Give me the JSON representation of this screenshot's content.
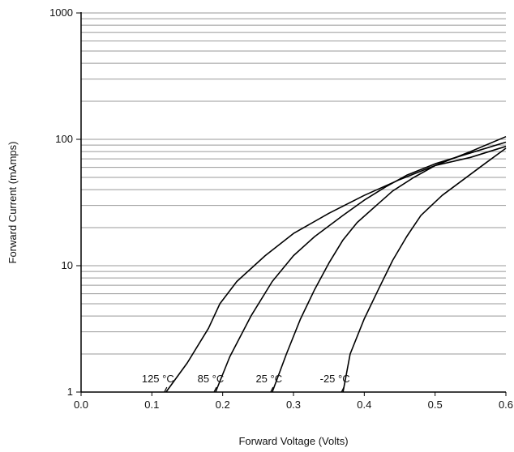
{
  "chart_data": {
    "type": "line",
    "title": "",
    "xlabel": "Forward Voltage (Volts)",
    "ylabel": "Forward Current (mAmps)",
    "xlim": [
      0.0,
      0.6
    ],
    "ylim": [
      1,
      1000
    ],
    "y_scale": "log",
    "grid": "horizontal minor and major log gridlines",
    "x_ticks": [
      "0.0",
      "0.1",
      "0.2",
      "0.3",
      "0.4",
      "0.5",
      "0.6"
    ],
    "y_ticks": [
      "1",
      "10",
      "100",
      "1000"
    ],
    "colors": {
      "curve": "#000000",
      "grid": "#999999",
      "axis": "#000000"
    },
    "series": [
      {
        "name": "125 °C",
        "points": [
          [
            0.12,
            1.0
          ],
          [
            0.15,
            1.7
          ],
          [
            0.18,
            3.2
          ],
          [
            0.196,
            5.0
          ],
          [
            0.22,
            7.5
          ],
          [
            0.26,
            12
          ],
          [
            0.3,
            18
          ],
          [
            0.35,
            26
          ],
          [
            0.4,
            36
          ],
          [
            0.45,
            48
          ],
          [
            0.5,
            62
          ],
          [
            0.55,
            80
          ],
          [
            0.6,
            105
          ]
        ]
      },
      {
        "name": "85 °C",
        "points": [
          [
            0.19,
            1.0
          ],
          [
            0.21,
            1.9
          ],
          [
            0.24,
            4.0
          ],
          [
            0.27,
            7.5
          ],
          [
            0.3,
            12
          ],
          [
            0.33,
            17
          ],
          [
            0.37,
            25
          ],
          [
            0.4,
            33
          ],
          [
            0.43,
            42
          ],
          [
            0.46,
            52
          ],
          [
            0.5,
            64
          ],
          [
            0.55,
            78
          ],
          [
            0.6,
            95
          ]
        ]
      },
      {
        "name": "25 °C",
        "points": [
          [
            0.27,
            1.0
          ],
          [
            0.29,
            2.0
          ],
          [
            0.31,
            3.8
          ],
          [
            0.33,
            6.5
          ],
          [
            0.35,
            10.5
          ],
          [
            0.37,
            16
          ],
          [
            0.39,
            22
          ],
          [
            0.42,
            31
          ],
          [
            0.44,
            39
          ],
          [
            0.47,
            50
          ],
          [
            0.5,
            62
          ],
          [
            0.55,
            72
          ],
          [
            0.6,
            88
          ]
        ]
      },
      {
        "name": "-25 °C",
        "points": [
          [
            0.37,
            1.0
          ],
          [
            0.38,
            2.0
          ],
          [
            0.4,
            3.8
          ],
          [
            0.42,
            6.5
          ],
          [
            0.44,
            11
          ],
          [
            0.46,
            17
          ],
          [
            0.48,
            25
          ],
          [
            0.51,
            36
          ],
          [
            0.54,
            48
          ],
          [
            0.57,
            64
          ],
          [
            0.6,
            85
          ]
        ]
      }
    ],
    "labels": [
      "125 °C",
      "85 °C",
      "25 °C",
      "-25 °C"
    ]
  }
}
